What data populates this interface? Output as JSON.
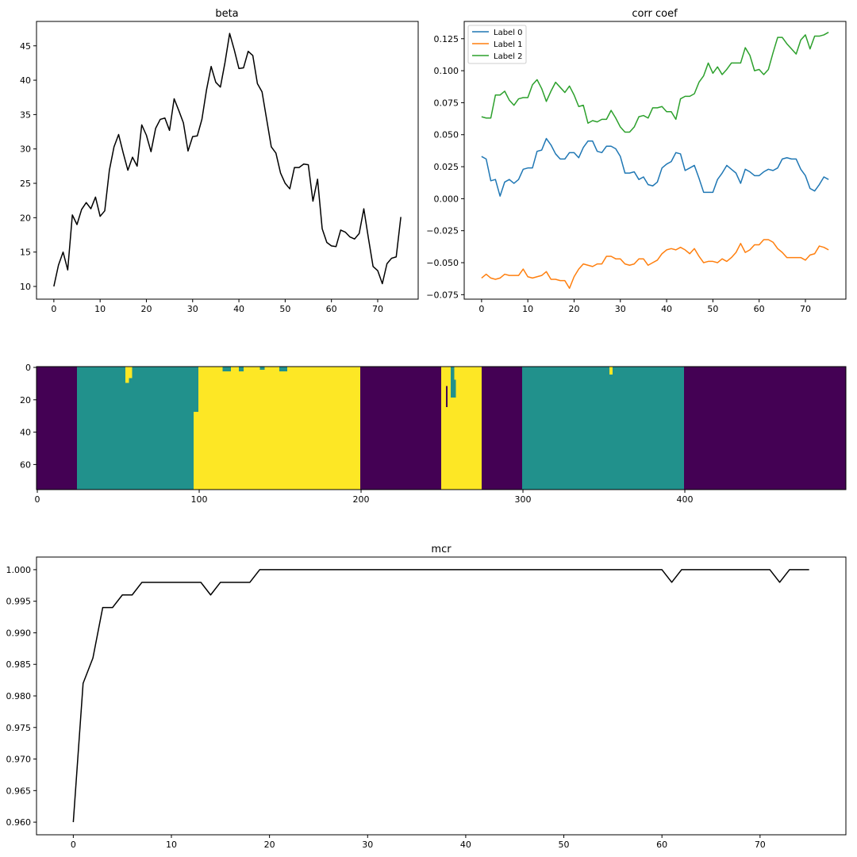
{
  "figure": {
    "background": "#ffffff"
  },
  "chart_data": [
    {
      "id": "beta",
      "type": "line",
      "title": "beta",
      "xlabel": "",
      "ylabel": "",
      "xlim": [
        -3.75,
        78.75
      ],
      "ylim": [
        8.15,
        48.55
      ],
      "xticks": [
        0,
        10,
        20,
        30,
        40,
        50,
        60,
        70
      ],
      "yticks": [
        10,
        15,
        20,
        25,
        30,
        35,
        40,
        45
      ],
      "grid": false,
      "series": [
        {
          "color": "#000000",
          "x": [
            0,
            1,
            2,
            3,
            4,
            5,
            6,
            7,
            8,
            9,
            10,
            11,
            12,
            13,
            14,
            15,
            16,
            17,
            18,
            19,
            20,
            21,
            22,
            23,
            24,
            25,
            26,
            27,
            28,
            29,
            30,
            31,
            32,
            33,
            34,
            35,
            36,
            37,
            38,
            39,
            40,
            41,
            42,
            43,
            44,
            45,
            46,
            47,
            48,
            49,
            50,
            51,
            52,
            53,
            54,
            55,
            56,
            57,
            58,
            59,
            60,
            61,
            62,
            63,
            64,
            65,
            66,
            67,
            68,
            69,
            70,
            71,
            72,
            73,
            74,
            75
          ],
          "y": [
            10.0,
            13.1,
            15.0,
            12.4,
            20.4,
            19.0,
            21.2,
            22.2,
            21.3,
            23.0,
            20.2,
            21.0,
            26.9,
            30.3,
            32.1,
            29.4,
            26.9,
            28.8,
            27.5,
            33.5,
            32.0,
            29.6,
            33.0,
            34.3,
            34.5,
            32.7,
            37.3,
            35.6,
            33.8,
            29.7,
            31.8,
            31.9,
            34.3,
            38.6,
            42.0,
            39.7,
            39.0,
            42.6,
            46.8,
            44.4,
            41.7,
            41.8,
            44.2,
            43.6,
            39.5,
            38.3,
            34.3,
            30.3,
            29.4,
            26.5,
            25.0,
            24.2,
            27.3,
            27.3,
            27.8,
            27.7,
            22.4,
            25.6,
            18.4,
            16.4,
            15.9,
            15.8,
            18.2,
            17.9,
            17.2,
            16.9,
            17.7,
            21.3,
            17.0,
            12.9,
            12.3,
            10.4,
            13.3,
            14.1,
            14.3,
            20.1
          ]
        }
      ]
    },
    {
      "id": "corr_coef",
      "type": "line",
      "title": "corr coef",
      "xlabel": "",
      "ylabel": "",
      "xlim": [
        -3.75,
        78.75
      ],
      "ylim": [
        -0.0785,
        0.1385
      ],
      "xticks": [
        0,
        10,
        20,
        30,
        40,
        50,
        60,
        70
      ],
      "yticks": [
        -0.075,
        -0.05,
        -0.025,
        0.0,
        0.025,
        0.05,
        0.075,
        0.1,
        0.125
      ],
      "ytick_labels": [
        "−0.075",
        "−0.050",
        "−0.025",
        "0.000",
        "0.025",
        "0.050",
        "0.075",
        "0.100",
        "0.125"
      ],
      "grid": false,
      "legend": {
        "placement": "upper-left"
      },
      "series": [
        {
          "name": "Label 0",
          "color": "#1f77b4",
          "x": [
            0,
            1,
            2,
            3,
            4,
            5,
            6,
            7,
            8,
            9,
            10,
            11,
            12,
            13,
            14,
            15,
            16,
            17,
            18,
            19,
            20,
            21,
            22,
            23,
            24,
            25,
            26,
            27,
            28,
            29,
            30,
            31,
            32,
            33,
            34,
            35,
            36,
            37,
            38,
            39,
            40,
            41,
            42,
            43,
            44,
            45,
            46,
            47,
            48,
            49,
            50,
            51,
            52,
            53,
            54,
            55,
            56,
            57,
            58,
            59,
            60,
            61,
            62,
            63,
            64,
            65,
            66,
            67,
            68,
            69,
            70,
            71,
            72,
            73,
            74,
            75
          ],
          "y": [
            0.033,
            0.031,
            0.014,
            0.015,
            0.002,
            0.013,
            0.015,
            0.012,
            0.015,
            0.023,
            0.024,
            0.024,
            0.037,
            0.038,
            0.047,
            0.042,
            0.035,
            0.031,
            0.031,
            0.036,
            0.036,
            0.032,
            0.04,
            0.045,
            0.045,
            0.037,
            0.036,
            0.041,
            0.041,
            0.039,
            0.033,
            0.02,
            0.02,
            0.021,
            0.015,
            0.017,
            0.011,
            0.01,
            0.013,
            0.024,
            0.027,
            0.029,
            0.036,
            0.035,
            0.022,
            0.024,
            0.026,
            0.016,
            0.005,
            0.005,
            0.005,
            0.015,
            0.02,
            0.026,
            0.023,
            0.02,
            0.012,
            0.023,
            0.021,
            0.018,
            0.018,
            0.021,
            0.023,
            0.022,
            0.024,
            0.031,
            0.032,
            0.031,
            0.031,
            0.023,
            0.018,
            0.008,
            0.006,
            0.011,
            0.017,
            0.015
          ]
        },
        {
          "name": "Label 1",
          "color": "#ff7f0e",
          "x": [
            0,
            1,
            2,
            3,
            4,
            5,
            6,
            7,
            8,
            9,
            10,
            11,
            12,
            13,
            14,
            15,
            16,
            17,
            18,
            19,
            20,
            21,
            22,
            23,
            24,
            25,
            26,
            27,
            28,
            29,
            30,
            31,
            32,
            33,
            34,
            35,
            36,
            37,
            38,
            39,
            40,
            41,
            42,
            43,
            44,
            45,
            46,
            47,
            48,
            49,
            50,
            51,
            52,
            53,
            54,
            55,
            56,
            57,
            58,
            59,
            60,
            61,
            62,
            63,
            64,
            65,
            66,
            67,
            68,
            69,
            70,
            71,
            72,
            73,
            74,
            75
          ],
          "y": [
            -0.062,
            -0.059,
            -0.062,
            -0.063,
            -0.062,
            -0.059,
            -0.06,
            -0.06,
            -0.06,
            -0.055,
            -0.061,
            -0.062,
            -0.061,
            -0.06,
            -0.057,
            -0.063,
            -0.063,
            -0.064,
            -0.064,
            -0.07,
            -0.061,
            -0.055,
            -0.051,
            -0.052,
            -0.053,
            -0.051,
            -0.051,
            -0.045,
            -0.045,
            -0.047,
            -0.047,
            -0.051,
            -0.052,
            -0.051,
            -0.047,
            -0.047,
            -0.052,
            -0.05,
            -0.048,
            -0.043,
            -0.04,
            -0.039,
            -0.04,
            -0.038,
            -0.04,
            -0.043,
            -0.039,
            -0.045,
            -0.05,
            -0.049,
            -0.049,
            -0.05,
            -0.047,
            -0.049,
            -0.046,
            -0.042,
            -0.035,
            -0.042,
            -0.04,
            -0.036,
            -0.036,
            -0.032,
            -0.032,
            -0.034,
            -0.039,
            -0.042,
            -0.046,
            -0.046,
            -0.046,
            -0.046,
            -0.048,
            -0.044,
            -0.043,
            -0.037,
            -0.038,
            -0.04
          ]
        },
        {
          "name": "Label 2",
          "color": "#2ca02c",
          "x": [
            0,
            1,
            2,
            3,
            4,
            5,
            6,
            7,
            8,
            9,
            10,
            11,
            12,
            13,
            14,
            15,
            16,
            17,
            18,
            19,
            20,
            21,
            22,
            23,
            24,
            25,
            26,
            27,
            28,
            29,
            30,
            31,
            32,
            33,
            34,
            35,
            36,
            37,
            38,
            39,
            40,
            41,
            42,
            43,
            44,
            45,
            46,
            47,
            48,
            49,
            50,
            51,
            52,
            53,
            54,
            55,
            56,
            57,
            58,
            59,
            60,
            61,
            62,
            63,
            64,
            65,
            66,
            67,
            68,
            69,
            70,
            71,
            72,
            73,
            74,
            75
          ],
          "y": [
            0.064,
            0.063,
            0.063,
            0.081,
            0.081,
            0.084,
            0.077,
            0.073,
            0.078,
            0.079,
            0.079,
            0.089,
            0.093,
            0.086,
            0.076,
            0.084,
            0.091,
            0.087,
            0.083,
            0.088,
            0.081,
            0.072,
            0.073,
            0.059,
            0.061,
            0.06,
            0.062,
            0.062,
            0.069,
            0.063,
            0.056,
            0.052,
            0.052,
            0.056,
            0.064,
            0.065,
            0.063,
            0.071,
            0.071,
            0.072,
            0.068,
            0.068,
            0.062,
            0.078,
            0.08,
            0.08,
            0.082,
            0.091,
            0.096,
            0.106,
            0.098,
            0.103,
            0.097,
            0.101,
            0.106,
            0.106,
            0.106,
            0.118,
            0.112,
            0.1,
            0.101,
            0.097,
            0.101,
            0.114,
            0.126,
            0.126,
            0.121,
            0.117,
            0.113,
            0.124,
            0.128,
            0.117,
            0.127,
            0.127,
            0.128,
            0.13
          ]
        }
      ]
    },
    {
      "id": "assignment_map",
      "type": "heatmap",
      "title": "",
      "xlabel": "",
      "ylabel": "",
      "xlim": [
        -0.5,
        499.5
      ],
      "ylim": [
        75.5,
        -0.5
      ],
      "xticks": [
        0,
        100,
        200,
        300,
        400
      ],
      "yticks": [
        0,
        20,
        40,
        60
      ],
      "colormap": {
        "0": "#440154",
        "1": "#21918c",
        "2": "#fde725"
      },
      "column_blocks": [
        {
          "x": [
            0,
            24
          ],
          "value": 0
        },
        {
          "x": [
            25,
            99
          ],
          "value": 1
        },
        {
          "x": [
            100,
            199
          ],
          "value": 2
        },
        {
          "x": [
            200,
            249
          ],
          "value": 0
        },
        {
          "x": [
            250,
            274
          ],
          "value": 2
        },
        {
          "x": [
            275,
            299
          ],
          "value": 0
        },
        {
          "x": [
            300,
            399
          ],
          "value": 1
        },
        {
          "x": [
            400,
            499
          ],
          "value": 0
        }
      ],
      "deviations": [
        {
          "x": [
            55,
            56
          ],
          "y": [
            0,
            9
          ],
          "value": 2
        },
        {
          "x": [
            57,
            58
          ],
          "y": [
            0,
            6
          ],
          "value": 2
        },
        {
          "x": [
            97,
            99
          ],
          "y": [
            28,
            75
          ],
          "value": 2
        },
        {
          "x": [
            115,
            119
          ],
          "y": [
            0,
            2
          ],
          "value": 1
        },
        {
          "x": [
            125,
            127
          ],
          "y": [
            0,
            2
          ],
          "value": 1
        },
        {
          "x": [
            138,
            140
          ],
          "y": [
            0,
            1
          ],
          "value": 1
        },
        {
          "x": [
            150,
            154
          ],
          "y": [
            0,
            2
          ],
          "value": 1
        },
        {
          "x": [
            253,
            253
          ],
          "y": [
            12,
            24
          ],
          "value": 0
        },
        {
          "x": [
            256,
            257
          ],
          "y": [
            0,
            7
          ],
          "value": 1
        },
        {
          "x": [
            256,
            258
          ],
          "y": [
            8,
            18
          ],
          "value": 1
        },
        {
          "x": [
            354,
            355
          ],
          "y": [
            0,
            4
          ],
          "value": 2
        }
      ]
    },
    {
      "id": "mcr",
      "type": "line",
      "title": "mcr",
      "xlabel": "",
      "ylabel": "",
      "xlim": [
        -3.75,
        78.75
      ],
      "ylim": [
        0.958,
        1.002
      ],
      "xticks": [
        0,
        10,
        20,
        30,
        40,
        50,
        60,
        70
      ],
      "yticks": [
        0.96,
        0.965,
        0.97,
        0.975,
        0.98,
        0.985,
        0.99,
        0.995,
        1.0
      ],
      "ytick_labels": [
        "0.960",
        "0.965",
        "0.970",
        "0.975",
        "0.980",
        "0.985",
        "0.990",
        "0.995",
        "1.000"
      ],
      "grid": false,
      "series": [
        {
          "color": "#000000",
          "x": [
            0,
            1,
            2,
            3,
            4,
            5,
            6,
            7,
            8,
            9,
            10,
            11,
            12,
            13,
            14,
            15,
            16,
            17,
            18,
            19,
            20,
            21,
            22,
            23,
            24,
            25,
            26,
            27,
            28,
            29,
            30,
            31,
            32,
            33,
            34,
            35,
            36,
            37,
            38,
            39,
            40,
            41,
            42,
            43,
            44,
            45,
            46,
            47,
            48,
            49,
            50,
            51,
            52,
            53,
            54,
            55,
            56,
            57,
            58,
            59,
            60,
            61,
            62,
            63,
            64,
            65,
            66,
            67,
            68,
            69,
            70,
            71,
            72,
            73,
            74,
            75
          ],
          "y": [
            0.96,
            0.982,
            0.986,
            0.994,
            0.994,
            0.996,
            0.996,
            0.998,
            0.998,
            0.998,
            0.998,
            0.998,
            0.998,
            0.998,
            0.996,
            0.998,
            0.998,
            0.998,
            0.998,
            1.0,
            1.0,
            1.0,
            1.0,
            1.0,
            1.0,
            1.0,
            1.0,
            1.0,
            1.0,
            1.0,
            1.0,
            1.0,
            1.0,
            1.0,
            1.0,
            1.0,
            1.0,
            1.0,
            1.0,
            1.0,
            1.0,
            1.0,
            1.0,
            1.0,
            1.0,
            1.0,
            1.0,
            1.0,
            1.0,
            1.0,
            1.0,
            1.0,
            1.0,
            1.0,
            1.0,
            1.0,
            1.0,
            1.0,
            1.0,
            1.0,
            1.0,
            0.998,
            1.0,
            1.0,
            1.0,
            1.0,
            1.0,
            1.0,
            1.0,
            1.0,
            1.0,
            1.0,
            0.998,
            1.0,
            1.0,
            1.0
          ]
        }
      ]
    }
  ]
}
